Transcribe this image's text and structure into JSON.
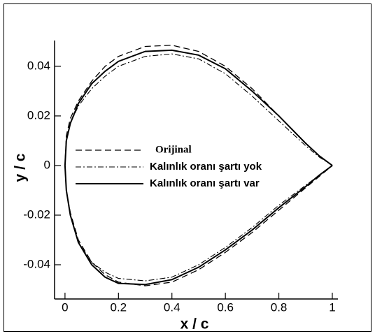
{
  "chart_data": {
    "type": "line",
    "xlabel": "x / c",
    "ylabel": "y / c",
    "xlim": [
      -0.039,
      1.021
    ],
    "ylim": [
      -0.0538,
      0.0504
    ],
    "xticks": [
      0,
      0.2,
      0.4,
      0.6,
      0.8,
      1
    ],
    "yticks": [
      -0.04,
      -0.02,
      0,
      0.02,
      0.04
    ],
    "x": [
      1,
      0.95,
      0.9,
      0.8,
      0.7,
      0.6,
      0.5,
      0.4,
      0.3,
      0.2,
      0.15,
      0.1,
      0.05,
      0.02,
      0.005,
      0,
      0.005,
      0.02,
      0.05,
      0.1,
      0.15,
      0.2,
      0.3,
      0.4,
      0.5,
      0.6,
      0.7,
      0.8,
      0.9,
      0.95,
      1
    ],
    "series": [
      {
        "name": "Orijinal",
        "color": "#000000",
        "style": "dashed",
        "values": [
          0,
          0.004,
          0.009,
          0.02,
          0.031,
          0.04,
          0.046,
          0.0485,
          0.048,
          0.044,
          0.04,
          0.034,
          0.026,
          0.019,
          0.012,
          0,
          -0.01,
          -0.019,
          -0.03,
          -0.039,
          -0.044,
          -0.047,
          -0.0485,
          -0.047,
          -0.042,
          -0.035,
          -0.027,
          -0.018,
          -0.009,
          -0.0045,
          0
        ]
      },
      {
        "name": "Kalınlık oranı şartı yok",
        "color": "#000000",
        "style": "dashdot",
        "values": [
          0,
          0.0035,
          0.008,
          0.018,
          0.028,
          0.037,
          0.043,
          0.045,
          0.044,
          0.04,
          0.036,
          0.031,
          0.024,
          0.017,
          0.01,
          0,
          -0.01,
          -0.02,
          -0.031,
          -0.039,
          -0.043,
          -0.0455,
          -0.0465,
          -0.045,
          -0.04,
          -0.033,
          -0.025,
          -0.016,
          -0.008,
          -0.004,
          0
        ]
      },
      {
        "name": "Kalınlık oranı şartı var",
        "color": "#000000",
        "style": "solid",
        "values": [
          0,
          0.004,
          0.009,
          0.02,
          0.03,
          0.039,
          0.0445,
          0.0465,
          0.046,
          0.042,
          0.038,
          0.033,
          0.025,
          0.017,
          0.01,
          0,
          -0.01,
          -0.02,
          -0.031,
          -0.04,
          -0.045,
          -0.0475,
          -0.048,
          -0.046,
          -0.041,
          -0.034,
          -0.026,
          -0.017,
          -0.0085,
          -0.004,
          0
        ]
      }
    ]
  }
}
